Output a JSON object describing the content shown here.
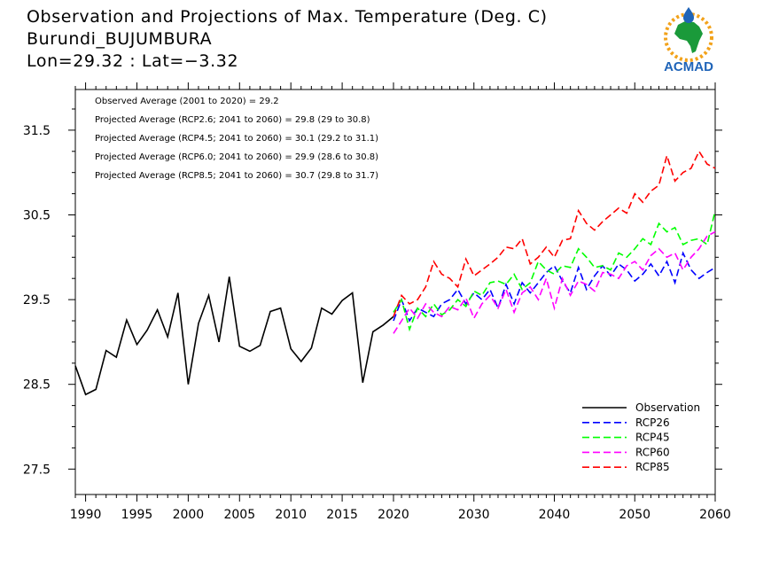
{
  "header": {
    "title": "Observation and Projections of Max. Temperature (Deg. C)",
    "location": "Burundi_BUJUMBURA",
    "coords": "Lon=29.32 : Lat=−3.32"
  },
  "logo": {
    "text": "ACMAD"
  },
  "chart_data": {
    "type": "line",
    "title": "Observation and Projections of Max. Temperature (Deg. C)",
    "xlim": [
      1989,
      2060
    ],
    "ylim": [
      27.2,
      31.98
    ],
    "x_ticks": [
      1990,
      1995,
      2000,
      2005,
      2010,
      2015,
      2020,
      2030,
      2040,
      2050,
      2060
    ],
    "y_ticks": [
      27.5,
      28.5,
      29.5,
      30.5,
      31.5
    ],
    "y_tick_labels": [
      "27.5",
      "28.5",
      "29.5",
      "30.5",
      "31.5"
    ],
    "annotations": [
      "Observed Average (2001 to 2020) = 29.2",
      "Projected Average (RCP2.6; 2041 to 2060) = 29.8 (29 to 30.8)",
      "Projected Average (RCP4.5; 2041 to 2060) = 30.1 (29.2 to 31.1)",
      "Projected Average (RCP6.0; 2041 to 2060) = 29.9 (28.6 to 30.8)",
      "Projected Average (RCP8.5; 2041 to 2060) = 30.7 (29.8 to 31.7)"
    ],
    "legend_position": "bottom-right",
    "series": [
      {
        "name": "Observation",
        "color": "#000000",
        "dash": false,
        "x": [
          1989,
          1990,
          1991,
          1992,
          1993,
          1994,
          1995,
          1996,
          1997,
          1998,
          1999,
          2000,
          2001,
          2002,
          2003,
          2004,
          2005,
          2006,
          2007,
          2008,
          2009,
          2010,
          2011,
          2012,
          2013,
          2014,
          2015,
          2016,
          2017,
          2018,
          2019,
          2020
        ],
        "y": [
          28.72,
          28.38,
          28.44,
          28.9,
          28.82,
          29.26,
          28.97,
          29.14,
          29.38,
          29.06,
          29.58,
          28.5,
          29.22,
          29.55,
          29.0,
          29.77,
          28.95,
          28.89,
          28.96,
          29.36,
          29.4,
          28.92,
          28.77,
          28.93,
          29.4,
          29.33,
          29.49,
          29.58,
          28.52,
          29.12,
          29.2,
          29.3
        ]
      },
      {
        "name": "RCP26",
        "color": "#0000ff",
        "dash": true,
        "x": [
          2020,
          2021,
          2022,
          2023,
          2024,
          2025,
          2026,
          2027,
          2028,
          2029,
          2030,
          2031,
          2032,
          2033,
          2034,
          2035,
          2036,
          2037,
          2038,
          2039,
          2040,
          2041,
          2042,
          2043,
          2044,
          2045,
          2046,
          2047,
          2048,
          2049,
          2050,
          2051,
          2052,
          2053,
          2054,
          2055,
          2056,
          2057,
          2058,
          2059,
          2060
        ],
        "y": [
          29.25,
          29.5,
          29.25,
          29.4,
          29.35,
          29.3,
          29.45,
          29.5,
          29.62,
          29.45,
          29.58,
          29.5,
          29.62,
          29.4,
          29.68,
          29.45,
          29.7,
          29.58,
          29.7,
          29.82,
          29.9,
          29.72,
          29.58,
          29.88,
          29.62,
          29.78,
          29.9,
          29.78,
          29.92,
          29.85,
          29.72,
          29.8,
          29.92,
          29.78,
          29.95,
          29.7,
          30.05,
          29.85,
          29.75,
          29.82,
          29.88
        ]
      },
      {
        "name": "RCP45",
        "color": "#00ff00",
        "dash": true,
        "x": [
          2020,
          2021,
          2022,
          2023,
          2024,
          2025,
          2026,
          2027,
          2028,
          2029,
          2030,
          2031,
          2032,
          2033,
          2034,
          2035,
          2036,
          2037,
          2038,
          2039,
          2040,
          2041,
          2042,
          2043,
          2044,
          2045,
          2046,
          2047,
          2048,
          2049,
          2050,
          2051,
          2052,
          2053,
          2054,
          2055,
          2056,
          2057,
          2058,
          2059,
          2060
        ],
        "y": [
          29.35,
          29.5,
          29.15,
          29.4,
          29.3,
          29.45,
          29.32,
          29.38,
          29.5,
          29.42,
          29.6,
          29.55,
          29.7,
          29.72,
          29.68,
          29.8,
          29.62,
          29.7,
          29.95,
          29.85,
          29.8,
          29.9,
          29.88,
          30.1,
          30.0,
          29.88,
          29.9,
          29.85,
          30.05,
          30.0,
          30.1,
          30.22,
          30.15,
          30.4,
          30.3,
          30.35,
          30.15,
          30.2,
          30.22,
          30.15,
          30.55
        ]
      },
      {
        "name": "RCP60",
        "color": "#ff00ff",
        "dash": true,
        "x": [
          2020,
          2021,
          2022,
          2023,
          2024,
          2025,
          2026,
          2027,
          2028,
          2029,
          2030,
          2031,
          2032,
          2033,
          2034,
          2035,
          2036,
          2037,
          2038,
          2039,
          2040,
          2041,
          2042,
          2043,
          2044,
          2045,
          2046,
          2047,
          2048,
          2049,
          2050,
          2051,
          2052,
          2053,
          2054,
          2055,
          2056,
          2057,
          2058,
          2059,
          2060
        ],
        "y": [
          29.1,
          29.25,
          29.4,
          29.28,
          29.45,
          29.35,
          29.3,
          29.42,
          29.38,
          29.52,
          29.28,
          29.45,
          29.55,
          29.4,
          29.62,
          29.35,
          29.58,
          29.65,
          29.5,
          29.75,
          29.4,
          29.75,
          29.55,
          29.72,
          29.68,
          29.6,
          29.82,
          29.8,
          29.75,
          29.9,
          29.95,
          29.85,
          30.02,
          30.1,
          30.0,
          30.05,
          29.85,
          30.0,
          30.1,
          30.25,
          30.3
        ]
      },
      {
        "name": "RCP85",
        "color": "#ff0000",
        "dash": true,
        "x": [
          2020,
          2021,
          2022,
          2023,
          2024,
          2025,
          2026,
          2027,
          2028,
          2029,
          2030,
          2031,
          2032,
          2033,
          2034,
          2035,
          2036,
          2037,
          2038,
          2039,
          2040,
          2041,
          2042,
          2043,
          2044,
          2045,
          2046,
          2047,
          2048,
          2049,
          2050,
          2051,
          2052,
          2053,
          2054,
          2055,
          2056,
          2057,
          2058,
          2059,
          2060
        ],
        "y": [
          29.3,
          29.55,
          29.45,
          29.5,
          29.65,
          29.95,
          29.8,
          29.75,
          29.65,
          29.98,
          29.78,
          29.85,
          29.92,
          30.0,
          30.12,
          30.1,
          30.22,
          29.92,
          30.0,
          30.12,
          30.0,
          30.2,
          30.22,
          30.55,
          30.4,
          30.32,
          30.42,
          30.5,
          30.58,
          30.52,
          30.75,
          30.65,
          30.78,
          30.85,
          31.2,
          30.9,
          31.0,
          31.05,
          31.25,
          31.1,
          31.05
        ]
      }
    ]
  }
}
